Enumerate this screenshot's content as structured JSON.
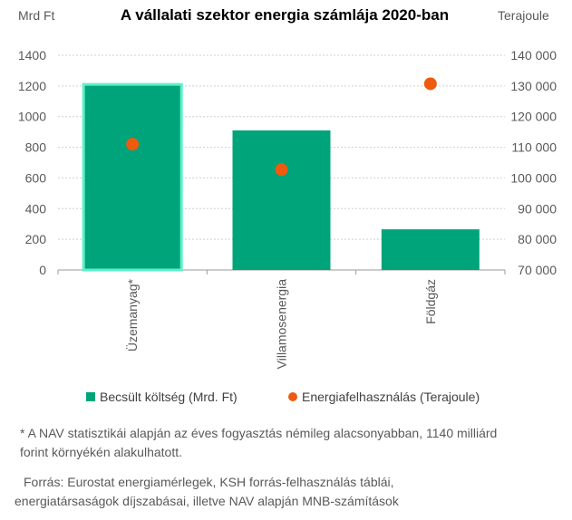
{
  "chart_data": {
    "type": "bar",
    "title": "A vállalati szektor energia számlája 2020-ban",
    "left_axis_unit": "Mrd Ft",
    "right_axis_unit": "Terajoule",
    "categories": [
      "Üzemanyag*",
      "Villamosenergia",
      "Földgáz"
    ],
    "left_ticks": [
      "0",
      "200",
      "400",
      "600",
      "800",
      "1000",
      "1200",
      "1400"
    ],
    "right_ticks": [
      "70 000",
      "80 000",
      "90 000",
      "100 000",
      "110 000",
      "120 000",
      "130 000",
      "140 000"
    ],
    "ylim_left": [
      0,
      1400
    ],
    "ylim_right": [
      70000,
      140000
    ],
    "grid": true,
    "legend_position": "bottom",
    "series": [
      {
        "name": "Becsült költség (Mrd. Ft)",
        "type": "bar",
        "axis": "left",
        "color": "#00a47a",
        "values": [
          1210,
          910,
          265
        ]
      },
      {
        "name": "Energiafelhasználás (Terajoule)",
        "type": "scatter",
        "axis": "right",
        "color": "#ee5a0e",
        "values": [
          111000,
          102700,
          130700
        ]
      }
    ],
    "highlight_color": "#5df0c8"
  },
  "notes": {
    "footnote_line1": "* A NAV statisztikái alapján az éves fogyasztás némileg alacsonyabban, 1140 milliárd",
    "footnote_line2": "forint környékén alakulhatott.",
    "source_line1": "Forrás: Eurostat energiamérlegek, KSH forrás-felhasználás táblái,",
    "source_line2": "energiatársaságok díjszabásai, illetve NAV alapján MNB-számítások"
  }
}
